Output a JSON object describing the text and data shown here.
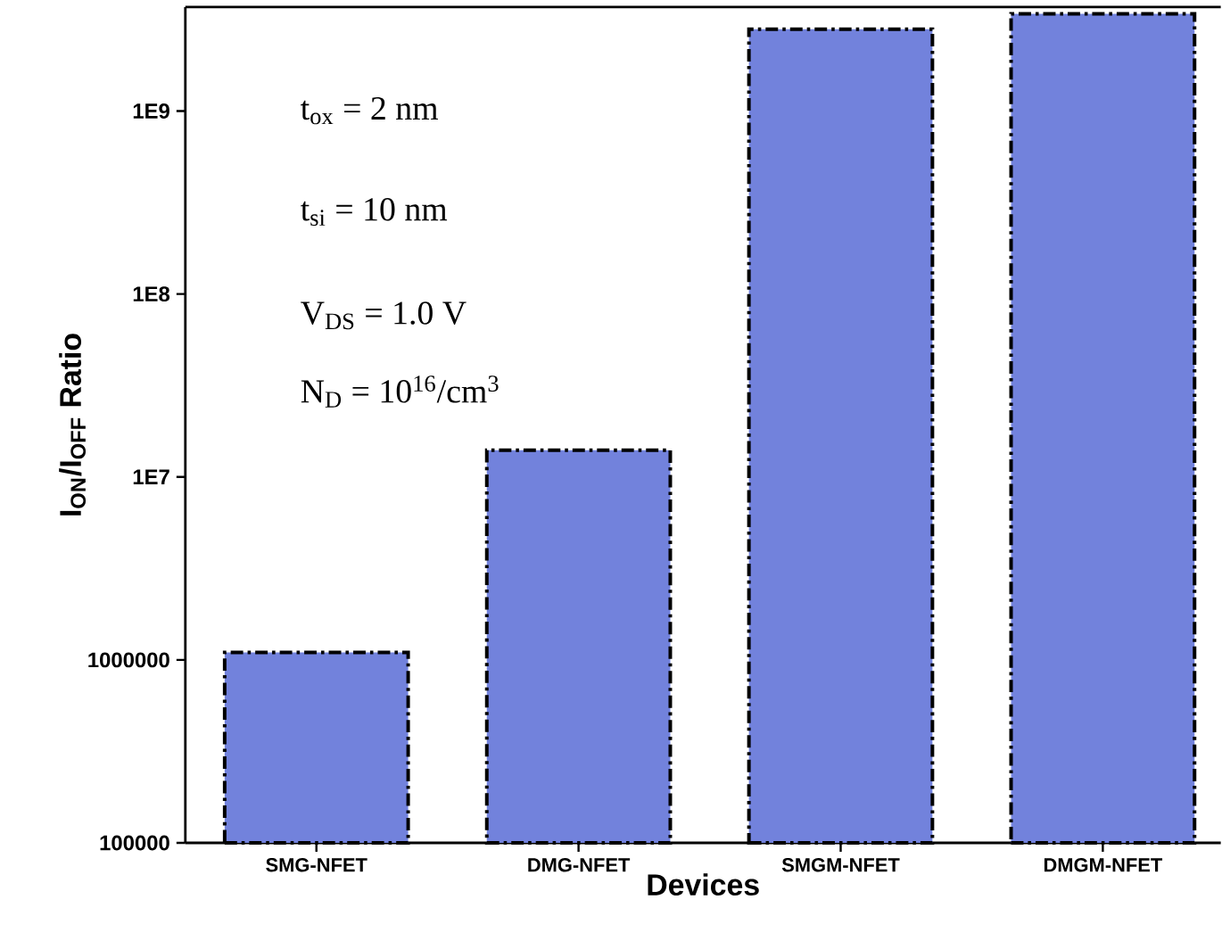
{
  "chart_data": {
    "type": "bar",
    "xlabel": "Devices",
    "ylabel": "I$_{ON}$/I$_{OFF}$ Ratio",
    "categories": [
      "SMG-NFET",
      "DMG-NFET",
      "SMGM-NFET",
      "DMGM-NFET"
    ],
    "values": [
      1100000,
      14000000,
      2800000000,
      3400000000
    ],
    "color": "#7282dc",
    "log": true,
    "ylim": [
      100000,
      3700000000
    ],
    "yticks": [
      100000,
      1000000,
      {
        "value": 10000000,
        "label": "1E7"
      },
      {
        "value": 100000000,
        "label": "1E8"
      },
      {
        "value": 1000000000,
        "label": "1E9"
      }
    ],
    "line_style": "dashdot",
    "annotations": [
      "t$_{ox}$ = 2 nm",
      "t$_{si}$ = 10 nm",
      "V$_{DS}$ = 1.0 V",
      "N$_{D}$ = 10$^{16}$/cm$^{3}$"
    ]
  }
}
